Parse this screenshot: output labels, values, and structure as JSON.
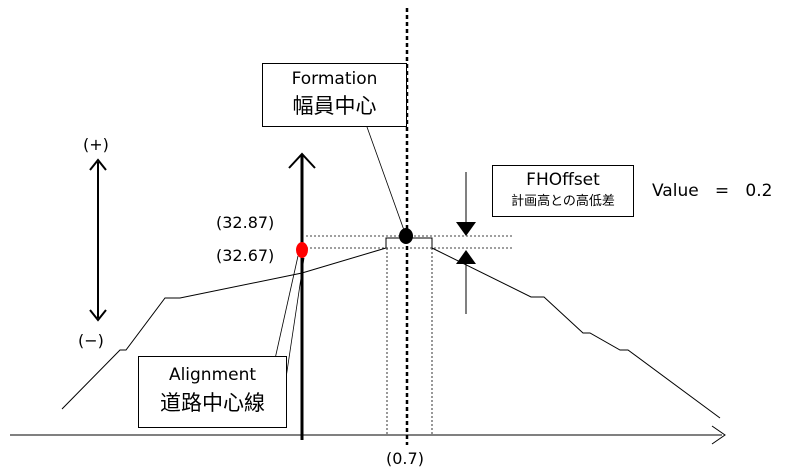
{
  "formation": {
    "line1": "Formation",
    "line2": "幅員中心"
  },
  "alignment": {
    "line1": "Alignment",
    "line2": "道路中心線"
  },
  "fhoffset": {
    "line1": "FHOffset",
    "line2": "計画高との高低差"
  },
  "value": {
    "label": "Value",
    "equals": "=",
    "number": "0.2"
  },
  "direction": {
    "plus": "(+)",
    "minus": "(−)"
  },
  "elevations": {
    "upper": "(32.87)",
    "lower": "(32.67)"
  },
  "offset": "(0.7)",
  "colors": {
    "line": "#000000",
    "alignment_point": "#ff0000",
    "formation_point": "#000000"
  }
}
